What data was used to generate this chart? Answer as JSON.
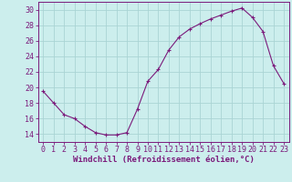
{
  "x": [
    0,
    1,
    2,
    3,
    4,
    5,
    6,
    7,
    8,
    9,
    10,
    11,
    12,
    13,
    14,
    15,
    16,
    17,
    18,
    19,
    20,
    21,
    22,
    23
  ],
  "y": [
    19.5,
    18.0,
    16.5,
    16.0,
    15.0,
    14.2,
    13.9,
    13.9,
    14.2,
    17.2,
    20.8,
    22.3,
    24.8,
    26.5,
    27.5,
    28.2,
    28.8,
    29.3,
    29.8,
    30.2,
    29.0,
    27.2,
    22.8,
    20.5
  ],
  "line_color": "#7b1a7b",
  "marker": "+",
  "bg_color": "#cceeed",
  "grid_color": "#aad4d4",
  "xlabel": "Windchill (Refroidissement éolien,°C)",
  "xlim": [
    -0.5,
    23.5
  ],
  "ylim": [
    13.0,
    31.0
  ],
  "yticks": [
    14,
    16,
    18,
    20,
    22,
    24,
    26,
    28,
    30
  ],
  "xticks": [
    0,
    1,
    2,
    3,
    4,
    5,
    6,
    7,
    8,
    9,
    10,
    11,
    12,
    13,
    14,
    15,
    16,
    17,
    18,
    19,
    20,
    21,
    22,
    23
  ],
  "tick_color": "#7b1a7b",
  "label_fontsize": 6.5,
  "tick_fontsize": 6.0
}
